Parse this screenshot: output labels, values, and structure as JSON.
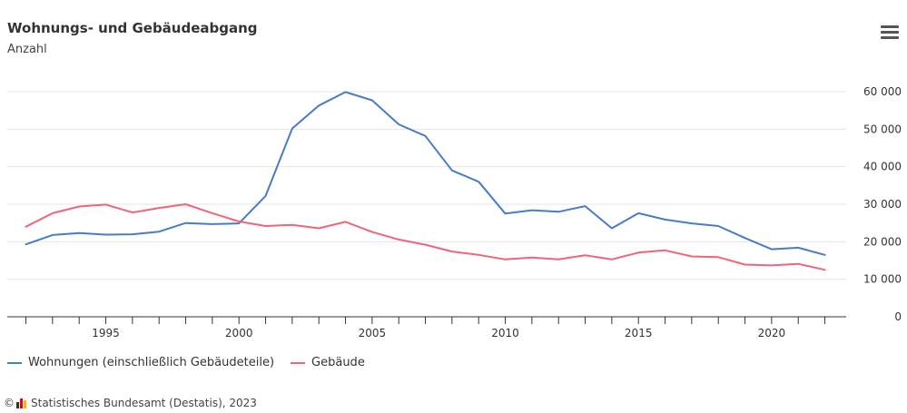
{
  "header": {
    "title": "Wohnungs- und Gebäudeabgang",
    "subtitle": "Anzahl",
    "menu_icon": "hamburger-menu-icon"
  },
  "footer": {
    "copyright_symbol": "©",
    "source": "Statistisches Bundesamt (Destatis), 2023",
    "logo": "destatis-logo-icon"
  },
  "colors": {
    "wohnungen": "#4a7bc8",
    "gebaeude": "#ee6677",
    "grid": "#e6e6e6",
    "axis": "#333333"
  },
  "chart_data": {
    "type": "line",
    "title": "Wohnungs- und Gebäudeabgang",
    "subtitle": "Anzahl",
    "x": [
      1992,
      1993,
      1994,
      1995,
      1996,
      1997,
      1998,
      1999,
      2000,
      2001,
      2002,
      2003,
      2004,
      2005,
      2006,
      2007,
      2008,
      2009,
      2010,
      2011,
      2012,
      2013,
      2014,
      2015,
      2016,
      2017,
      2018,
      2019,
      2020,
      2021,
      2022
    ],
    "series": [
      {
        "name": "Wohnungen (einschließlich Gebäudeteile)",
        "color": "#4a7bc8",
        "values": [
          19300,
          21800,
          22300,
          21900,
          22000,
          22700,
          25000,
          24700,
          24900,
          32200,
          50200,
          56300,
          59900,
          57700,
          51300,
          48200,
          39000,
          36000,
          27500,
          28400,
          28000,
          29500,
          23600,
          27600,
          25900,
          24900,
          24200,
          21000,
          18000,
          18400,
          16500
        ]
      },
      {
        "name": "Gebäude",
        "color": "#ee6677",
        "values": [
          24000,
          27600,
          29400,
          29900,
          27800,
          29000,
          30000,
          27600,
          25400,
          24200,
          24500,
          23600,
          25300,
          22600,
          20600,
          19200,
          17400,
          16500,
          15300,
          15800,
          15300,
          16400,
          15300,
          17100,
          17700,
          16100,
          15900,
          13900,
          13700,
          14100,
          12500
        ]
      }
    ],
    "x_ticks": [
      1995,
      2000,
      2005,
      2010,
      2015,
      2020
    ],
    "y_ticks": [
      0,
      10000,
      20000,
      30000,
      40000,
      50000,
      60000
    ],
    "y_tick_labels": [
      "0",
      "10 000",
      "20 000",
      "30 000",
      "40 000",
      "50 000",
      "60 000"
    ],
    "xlim": [
      1991.3,
      2022.8
    ],
    "ylim": [
      0,
      60000
    ],
    "grid": true,
    "y_axis_side": "right",
    "legend_position": "bottom-left"
  }
}
